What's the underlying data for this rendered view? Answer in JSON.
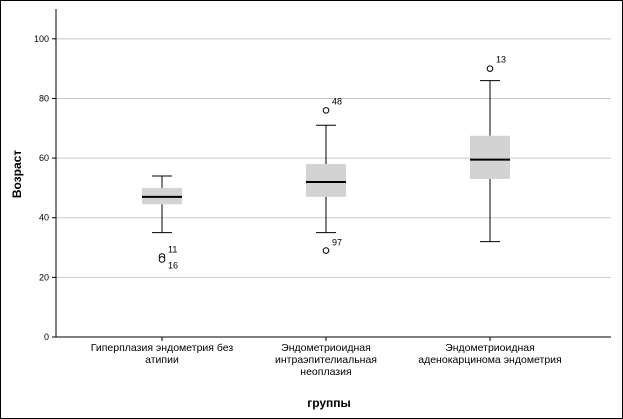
{
  "chart_data": {
    "type": "boxplot",
    "xlabel": "группы",
    "ylabel": "Возраст",
    "ylim": [
      0,
      110
    ],
    "yticks": [
      0,
      20,
      40,
      60,
      80,
      100
    ],
    "grid": "horizontal",
    "colors": {
      "box": "#d3d3d3",
      "median": "#000000",
      "grid": "#c8c8c8"
    },
    "groups": [
      {
        "label_lines": [
          "Гиперплазия эндометрия без",
          "атипии"
        ],
        "min": 35,
        "q1": 44.5,
        "median": 47,
        "q3": 50,
        "max": 54,
        "outliers": [
          {
            "value": 27,
            "label": "11"
          },
          {
            "value": 26,
            "label": "16"
          }
        ]
      },
      {
        "label_lines": [
          "Эндометриоидная",
          "интраэпителиальная",
          "неоплазия"
        ],
        "min": 35,
        "q1": 47,
        "median": 52,
        "q3": 58,
        "max": 71,
        "outliers": [
          {
            "value": 76,
            "label": "48"
          },
          {
            "value": 29,
            "label": "97"
          }
        ]
      },
      {
        "label_lines": [
          "Эндометриоидная",
          "аденокарцинома эндометрия"
        ],
        "min": 32,
        "q1": 53,
        "median": 59.5,
        "q3": 67.5,
        "max": 86,
        "outliers": [
          {
            "value": 90,
            "label": "13"
          }
        ]
      }
    ]
  }
}
